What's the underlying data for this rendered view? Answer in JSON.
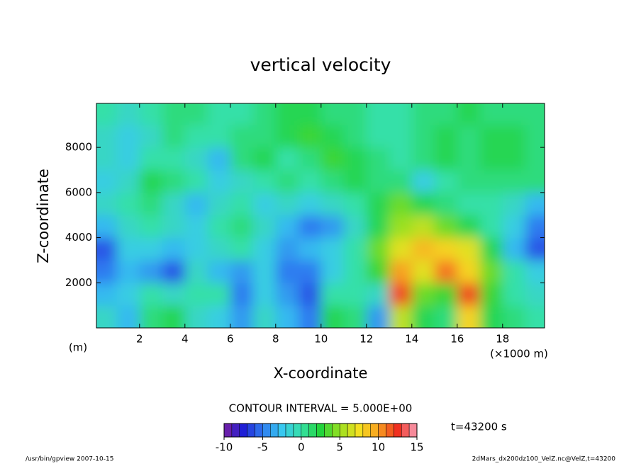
{
  "chart_data": {
    "type": "contour",
    "title": "vertical velocity",
    "x_label": "X-coordinate",
    "y_label": "Z-coordinate",
    "y_unit": "(m)",
    "x_unit": "(×1000 m)",
    "contour_note": "CONTOUR INTERVAL = 5.000E+00",
    "time_note": "t=43200 s",
    "footer_left": "/usr/bin/gpview  2007-10-15",
    "footer_right": "2dMars_dx200dz100_VelZ.nc@VelZ,t=43200",
    "x": [
      0.5,
      1.5,
      2.5,
      3.5,
      4.5,
      5.5,
      6.5,
      7.5,
      8.5,
      9.5,
      10.5,
      11.5,
      12.5,
      13.5,
      14.5,
      15.5,
      16.5,
      17.5,
      18.5,
      19.5
    ],
    "z": [
      500,
      1500,
      2500,
      3500,
      4500,
      5500,
      6500,
      7500,
      8500,
      9500
    ],
    "values": [
      [
        -1,
        -3,
        1,
        2,
        -1,
        -2,
        -4,
        -1,
        -3,
        -5,
        2,
        1,
        -4,
        6,
        2,
        1,
        8,
        2,
        1,
        0
      ],
      [
        -3,
        -2,
        0,
        -1,
        0,
        0,
        -5,
        -2,
        -4,
        -6,
        0,
        0,
        -1,
        12,
        4,
        3,
        12,
        3,
        0,
        -1
      ],
      [
        -5,
        -3,
        -4,
        -6,
        -1,
        -3,
        -4,
        -2,
        -5,
        -5,
        -2,
        0,
        3,
        10,
        7,
        11,
        8,
        4,
        0,
        -2
      ],
      [
        -6,
        -2,
        -2,
        -3,
        -2,
        -1,
        0,
        -2,
        -4,
        -3,
        -2,
        0,
        4,
        7,
        9,
        8,
        7,
        2,
        -3,
        -6
      ],
      [
        -3,
        -1,
        0,
        -1,
        -2,
        0,
        1,
        -1,
        -3,
        -5,
        -4,
        -1,
        2,
        5,
        6,
        4,
        2,
        0,
        -2,
        -5
      ],
      [
        -1,
        0,
        1,
        -1,
        -3,
        -1,
        0,
        -2,
        -1,
        -2,
        -1,
        0,
        2,
        4,
        2,
        1,
        0,
        0,
        -1,
        -3
      ],
      [
        -2,
        -1,
        2,
        1,
        0,
        -2,
        -1,
        0,
        1,
        0,
        1,
        2,
        1,
        1,
        -2,
        0,
        1,
        1,
        1,
        1
      ],
      [
        -1,
        -2,
        0,
        0,
        -1,
        -3,
        1,
        2,
        0,
        1,
        3,
        2,
        1,
        0,
        1,
        2,
        1,
        2,
        2,
        1
      ],
      [
        -1,
        -2,
        -1,
        1,
        0,
        0,
        1,
        1,
        2,
        3,
        2,
        1,
        0,
        0,
        1,
        2,
        1,
        2,
        2,
        1
      ],
      [
        0,
        -1,
        0,
        1,
        1,
        0,
        0,
        1,
        2,
        2,
        1,
        1,
        0,
        0,
        1,
        1,
        2,
        1,
        1,
        1
      ]
    ],
    "xlim": [
      0.1,
      19.85
    ],
    "ylim": [
      0,
      9950
    ],
    "xticks": [
      2,
      4,
      6,
      8,
      10,
      12,
      14,
      16,
      18
    ],
    "yticks": [
      2000,
      4000,
      6000,
      8000
    ],
    "clim": [
      -10,
      15
    ],
    "cticks": [
      -10,
      -5,
      0,
      5,
      10,
      15
    ],
    "colorscale": [
      "#7a1fa0",
      "#1f1fd6",
      "#2f7cf0",
      "#38c8f0",
      "#36e0a8",
      "#22d43c",
      "#9ae020",
      "#f4e020",
      "#f8a020",
      "#f03020",
      "#f8a0b8"
    ]
  }
}
